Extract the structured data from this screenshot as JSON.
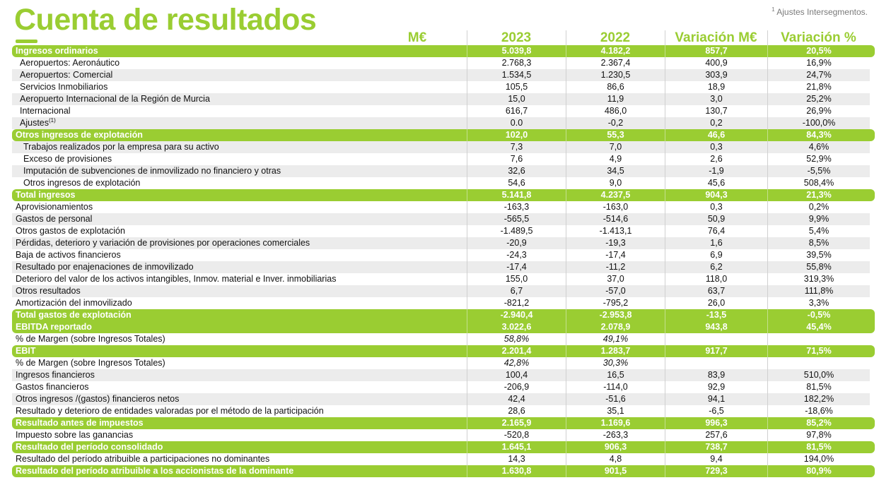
{
  "title": "Cuenta de resultados",
  "footnote": {
    "mark": "1",
    "text": "Ajustes Intersegmentos."
  },
  "header": {
    "unit": "M€",
    "col1": "2023",
    "col2": "2022",
    "col3": "Variación M€",
    "col4": "Variación %"
  },
  "colors": {
    "accent": "#9acd32",
    "stripe": "#ececec"
  },
  "rows": [
    {
      "type": "total",
      "label": "Ingresos ordinarios",
      "v": [
        "5.039,8",
        "4.182,2",
        "857,7",
        "20,5%"
      ]
    },
    {
      "type": "sub",
      "label": "Aeropuertos: Aeronáutico",
      "v": [
        "2.768,3",
        "2.367,4",
        "400,9",
        "16,9%"
      ]
    },
    {
      "type": "sub",
      "shade": true,
      "label": "Aeropuertos: Comercial",
      "v": [
        "1.534,5",
        "1.230,5",
        "303,9",
        "24,7%"
      ]
    },
    {
      "type": "sub",
      "label": "Servicios Inmobiliarios",
      "v": [
        "105,5",
        "86,6",
        "18,9",
        "21,8%"
      ]
    },
    {
      "type": "sub",
      "shade": true,
      "label": "Aeropuerto Internacional de la Región de Murcia",
      "v": [
        "15,0",
        "11,9",
        "3,0",
        "25,2%"
      ]
    },
    {
      "type": "sub",
      "label": "Internacional",
      "v": [
        "616,7",
        "486,0",
        "130,7",
        "26,9%"
      ]
    },
    {
      "type": "sub",
      "shade": true,
      "label": "Ajustes",
      "sup": "(1)",
      "v": [
        "0.0",
        "-0,2",
        "0,2",
        "-100,0%"
      ]
    },
    {
      "type": "total",
      "label": "Otros ingresos de explotación",
      "v": [
        "102,0",
        "55,3",
        "46,6",
        "84,3%"
      ]
    },
    {
      "type": "sub2",
      "shade": true,
      "label": "Trabajos realizados por la empresa para su activo",
      "v": [
        "7,3",
        "7,0",
        "0,3",
        "4,6%"
      ]
    },
    {
      "type": "sub2",
      "label": "Exceso de provisiones",
      "v": [
        "7,6",
        "4,9",
        "2,6",
        "52,9%"
      ]
    },
    {
      "type": "sub2",
      "shade": true,
      "label": "Imputación de subvenciones de inmovilizado no financiero y otras",
      "v": [
        "32,6",
        "34,5",
        "-1,9",
        "-5,5%"
      ]
    },
    {
      "type": "sub2",
      "label": "Otros ingresos de explotación",
      "v": [
        "54,6",
        "9,0",
        "45,6",
        "508,4%"
      ]
    },
    {
      "type": "total",
      "label": "Total ingresos",
      "v": [
        "5.141,8",
        "4.237,5",
        "904,3",
        "21,3%"
      ]
    },
    {
      "type": "item",
      "label": "Aprovisionamientos",
      "v": [
        "-163,3",
        "-163,0",
        "0,3",
        "0,2%"
      ]
    },
    {
      "type": "item",
      "shade": true,
      "label": "Gastos de personal",
      "v": [
        "-565,5",
        "-514,6",
        "50,9",
        "9,9%"
      ]
    },
    {
      "type": "item",
      "label": "Otros gastos de explotación",
      "v": [
        "-1.489,5",
        "-1.413,1",
        "76,4",
        "5,4%"
      ]
    },
    {
      "type": "item",
      "shade": true,
      "label": "Pérdidas, deterioro y variación de provisiones por operaciones comerciales",
      "v": [
        "-20,9",
        "-19,3",
        "1,6",
        "8,5%"
      ]
    },
    {
      "type": "item",
      "label": "Baja de activos financieros",
      "v": [
        "-24,3",
        "-17,4",
        "6,9",
        "39,5%"
      ]
    },
    {
      "type": "item",
      "shade": true,
      "label": "Resultado por enajenaciones de inmovilizado",
      "v": [
        "-17,4",
        "-11,2",
        "6,2",
        "55,8%"
      ]
    },
    {
      "type": "item",
      "label": "Deterioro del valor de los activos intangibles, Inmov. material e Inver. inmobiliarias",
      "v": [
        "155,0",
        "37,0",
        "118,0",
        "319,3%"
      ]
    },
    {
      "type": "item",
      "shade": true,
      "label": "Otros resultados",
      "v": [
        "6,7",
        "-57,0",
        "63,7",
        "111,8%"
      ]
    },
    {
      "type": "item",
      "label": "Amortización del inmovilizado",
      "v": [
        "-821,2",
        "-795,2",
        "26,0",
        "3,3%"
      ]
    },
    {
      "type": "total",
      "join": "bottom",
      "label": "Total gastos de explotación",
      "v": [
        "-2.940,4",
        "-2.953,8",
        "-13,5",
        "-0,5%"
      ]
    },
    {
      "type": "total",
      "join": "top",
      "label": "EBITDA reportado",
      "v": [
        "3.022,6",
        "2.078,9",
        "943,8",
        "45,4%"
      ]
    },
    {
      "type": "margin",
      "label": "% de Margen (sobre Ingresos Totales)",
      "v": [
        "58,8%",
        "49,1%",
        "",
        ""
      ]
    },
    {
      "type": "total",
      "label": "EBIT",
      "v": [
        "2.201,4",
        "1.283,7",
        "917,7",
        "71,5%"
      ]
    },
    {
      "type": "margin",
      "label": "% de Margen (sobre Ingresos Totales)",
      "v": [
        "42,8%",
        "30,3%",
        "",
        ""
      ]
    },
    {
      "type": "item",
      "shade": true,
      "label": "Ingresos financieros",
      "v": [
        "100,4",
        "16,5",
        "83,9",
        "510,0%"
      ]
    },
    {
      "type": "item",
      "label": "Gastos financieros",
      "v": [
        "-206,9",
        "-114,0",
        "92,9",
        "81,5%"
      ]
    },
    {
      "type": "item",
      "shade": true,
      "label": "Otros ingresos /(gastos) financieros netos",
      "v": [
        "42,4",
        "-51,6",
        "94,1",
        "182,2%"
      ]
    },
    {
      "type": "item",
      "label": "Resultado y deterioro de entidades valoradas por el método de la participación",
      "v": [
        "28,6",
        "35,1",
        "-6,5",
        "-18,6%"
      ]
    },
    {
      "type": "total",
      "label": "Resultado antes de impuestos",
      "v": [
        "2.165,9",
        "1.169,6",
        "996,3",
        "85,2%"
      ]
    },
    {
      "type": "item",
      "label": "Impuesto sobre las ganancias",
      "v": [
        "-520,8",
        "-263,3",
        "257,6",
        "97,8%"
      ]
    },
    {
      "type": "total",
      "label": "Resultado del período consolidado",
      "v": [
        "1.645,1",
        "906,3",
        "738,7",
        "81,5%"
      ]
    },
    {
      "type": "item",
      "label": "Resultado del período atribuible a participaciones no dominantes",
      "v": [
        "14,3",
        "4,8",
        "9,4",
        "194,0%"
      ]
    },
    {
      "type": "total",
      "label": "Resultado del período atribuible a los accionistas de la dominante",
      "v": [
        "1.630,8",
        "901,5",
        "729,3",
        "80,9%"
      ]
    }
  ]
}
